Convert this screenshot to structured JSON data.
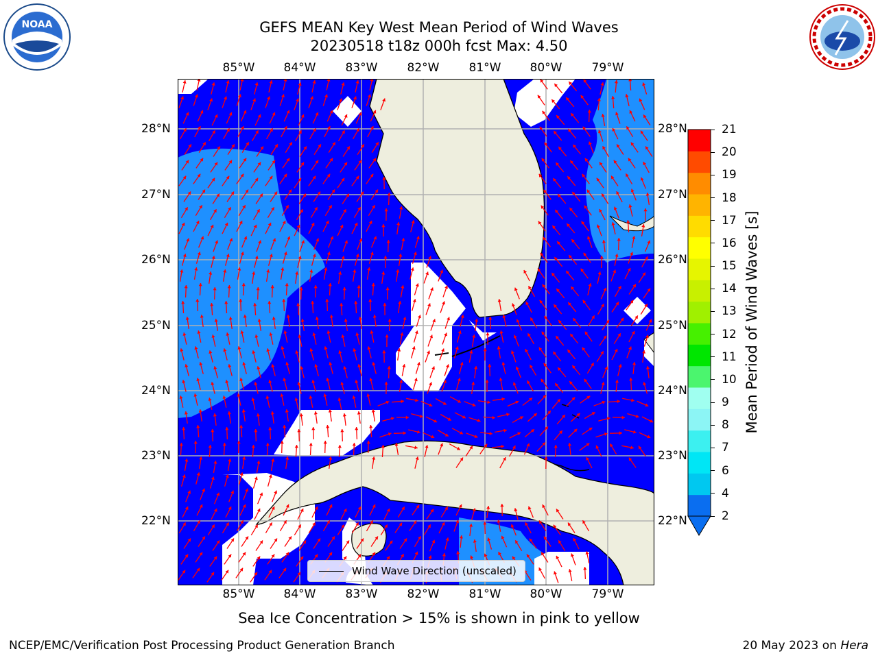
{
  "title": {
    "line1": "GEFS MEAN Key West Mean Period of Wind Waves",
    "line2": "20230518 t18z 000h fcst   Max: 4.50"
  },
  "map": {
    "lon_labels": [
      "85°W",
      "84°W",
      "83°W",
      "82°W",
      "81°W",
      "80°W",
      "79°W"
    ],
    "lat_labels": [
      "28°N",
      "27°N",
      "26°N",
      "25°N",
      "24°N",
      "23°N",
      "22°N"
    ],
    "colors": {
      "ocean_low": "#0000ff",
      "ocean_mid": "#1e90ff",
      "land": "#eeeede",
      "no_data": "#ffffff",
      "arrow": "#ff0000"
    }
  },
  "colorbar": {
    "label": "Mean Period of Wind Waves [s]",
    "ticks": [
      "2",
      "4",
      "6",
      "7",
      "8",
      "9",
      "10",
      "11",
      "12",
      "13",
      "14",
      "15",
      "16",
      "17",
      "18",
      "19",
      "20",
      "21"
    ],
    "colors": [
      "#0a6ef0",
      "#00c8f0",
      "#00e6f5",
      "#3cf0f0",
      "#8cf5f5",
      "#a0fff0",
      "#4bf56e",
      "#00e600",
      "#46f000",
      "#a0f000",
      "#c8f000",
      "#e6f500",
      "#ffff00",
      "#ffdc00",
      "#ffb400",
      "#ff8c00",
      "#ff4b00",
      "#ff0000"
    ]
  },
  "legend": {
    "label": "Wind Wave Direction (unscaled)"
  },
  "notes": {
    "sea_ice": "Sea Ice Concentration > 15% is shown in pink to yellow"
  },
  "footer": {
    "left": "NCEP/EMC/Verification Post Processing Product Generation Branch",
    "right_date": "20 May 2023 on ",
    "right_host": "Hera"
  },
  "logos": {
    "noaa": "NOAA",
    "nws_text": "NATIONAL WEATHER SERVICE"
  }
}
